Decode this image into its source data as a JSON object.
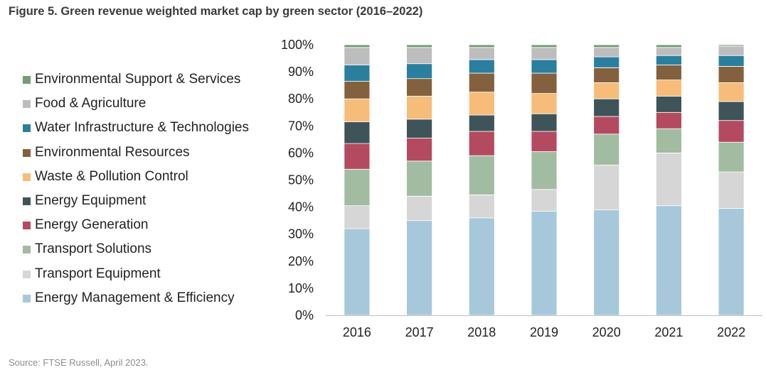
{
  "header": {
    "title": "Figure 5. Green revenue weighted market cap by green sector (2016–2022)"
  },
  "footer": {
    "source": "Source: FTSE Russell, April 2023."
  },
  "chart_data": {
    "type": "bar",
    "stacked": true,
    "title": "Figure 5. Green revenue weighted market cap by green sector (2016–2022)",
    "xlabel": "",
    "ylabel": "",
    "ylim": [
      0,
      100
    ],
    "y_ticks": [
      "0%",
      "10%",
      "20%",
      "30%",
      "40%",
      "50%",
      "60%",
      "70%",
      "80%",
      "90%",
      "100%"
    ],
    "categories": [
      "2016",
      "2017",
      "2018",
      "2019",
      "2020",
      "2021",
      "2022"
    ],
    "legend_position": "left",
    "series": [
      {
        "name": "Energy Management & Efficiency",
        "color": "#a6c8da",
        "values": [
          32,
          35,
          36,
          38.5,
          39,
          40.5,
          39.5
        ]
      },
      {
        "name": "Transport Equipment",
        "color": "#d6d6d6",
        "values": [
          8.5,
          9,
          8.5,
          8,
          16.5,
          19.5,
          13.5
        ]
      },
      {
        "name": "Transport Solutions",
        "color": "#a2bca2",
        "values": [
          13.5,
          13,
          14.5,
          14,
          11.5,
          9,
          11
        ]
      },
      {
        "name": "Energy Generation",
        "color": "#b44a5f",
        "values": [
          9.5,
          8.5,
          9,
          7.5,
          6.5,
          6,
          8
        ]
      },
      {
        "name": "Energy Equipment",
        "color": "#3e5459",
        "values": [
          8,
          7,
          6,
          6.5,
          6.5,
          6,
          7
        ]
      },
      {
        "name": "Waste & Pollution Control",
        "color": "#f7bc7a",
        "values": [
          8.5,
          8.5,
          8.5,
          7.5,
          6,
          6,
          7
        ]
      },
      {
        "name": "Environmental Resources",
        "color": "#84613e",
        "values": [
          6.5,
          6.5,
          7,
          7.5,
          5.5,
          5.5,
          6
        ]
      },
      {
        "name": "Water Infrastructure & Technologies",
        "color": "#2b7f9e",
        "values": [
          6,
          5.5,
          5,
          5,
          4,
          3.5,
          4
        ]
      },
      {
        "name": "Food & Agriculture",
        "color": "#bdbdbd",
        "values": [
          6.5,
          6,
          4.5,
          4.5,
          3.5,
          3,
          3.5
        ]
      },
      {
        "name": "Environmental Support & Services",
        "color": "#739d73",
        "values": [
          1,
          1,
          1,
          1,
          1,
          1,
          0.5
        ]
      }
    ]
  }
}
